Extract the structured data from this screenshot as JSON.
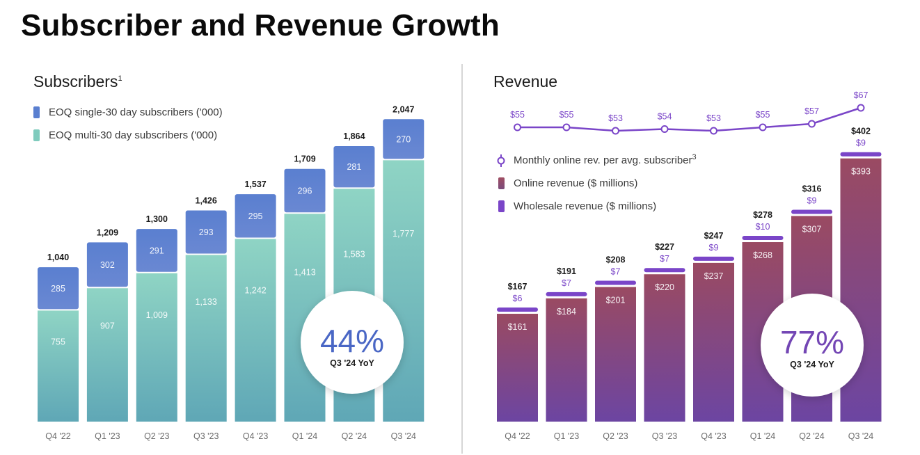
{
  "page": {
    "title": "Subscriber and Revenue Growth"
  },
  "chart_data": [
    {
      "type": "bar",
      "stacked": true,
      "title": "Subscribers",
      "title_superscript": "1",
      "categories": [
        "Q4 '22",
        "Q1 '23",
        "Q2 '23",
        "Q3 '23",
        "Q4 '23",
        "Q1 '24",
        "Q2 '24",
        "Q3 '24"
      ],
      "series": [
        {
          "name": "EOQ multi-30 day subscribers  ('000)",
          "values": [
            755,
            907,
            1009,
            1133,
            1242,
            1413,
            1583,
            1777
          ],
          "color_top": "#8fd4c4",
          "color_bottom": "#5fa7b6"
        },
        {
          "name": "EOQ single-30 day subscribers ('000)",
          "values": [
            285,
            302,
            291,
            293,
            295,
            296,
            281,
            270
          ],
          "color_top": "#5a7fd0",
          "color_bottom": "#6a88d2"
        }
      ],
      "totals": [
        "1,040",
        "1,209",
        "1,300",
        "1,426",
        "1,537",
        "1,709",
        "1,864",
        "2,047"
      ],
      "legend": [
        "EOQ single-30 day subscribers ('000)",
        "EOQ multi-30 day subscribers  ('000)"
      ],
      "ylim": [
        0,
        2100
      ],
      "callout": {
        "value": "44%",
        "caption": "Q3 '24 YoY",
        "color": "#4a67c5"
      }
    },
    {
      "type": "bar",
      "stacked": true,
      "title": "Revenue",
      "categories": [
        "Q4 '22",
        "Q1 '23",
        "Q2 '23",
        "Q3 '23",
        "Q4 '23",
        "Q1 '24",
        "Q2 '24",
        "Q3 '24"
      ],
      "series": [
        {
          "name": "Online revenue ($ millions)",
          "values": [
            161,
            184,
            201,
            220,
            237,
            268,
            307,
            393
          ],
          "labels": [
            "$161",
            "$184",
            "$201",
            "$220",
            "$237",
            "$268",
            "$307",
            "$393"
          ],
          "color_top": "#9a4a62",
          "color_bottom": "#6c45a2"
        },
        {
          "name": "Wholesale revenue ($ millions)",
          "values": [
            6,
            7,
            7,
            7,
            9,
            10,
            9,
            9
          ],
          "labels": [
            "$6",
            "$7",
            "$7",
            "$7",
            "$9",
            "$10",
            "$9",
            "$9"
          ],
          "color": "#7a45c8"
        }
      ],
      "totals": [
        "$167",
        "$191",
        "$208",
        "$227",
        "$247",
        "$278",
        "$316",
        "$402"
      ],
      "line_series": {
        "name": "Monthly online rev. per avg. subscriber",
        "superscript": "3",
        "values": [
          55,
          55,
          53,
          54,
          53,
          55,
          57,
          67
        ],
        "labels": [
          "$55",
          "$55",
          "$53",
          "$54",
          "$53",
          "$55",
          "$57",
          "$67"
        ],
        "color": "#7a45c8"
      },
      "legend": [
        "Monthly online rev. per avg. subscriber",
        "Online revenue ($ millions)",
        "Wholesale revenue ($ millions)"
      ],
      "ylim": [
        0,
        410
      ],
      "callout": {
        "value": "77%",
        "caption": "Q3 '24 YoY",
        "color": "#7346b4"
      }
    }
  ]
}
